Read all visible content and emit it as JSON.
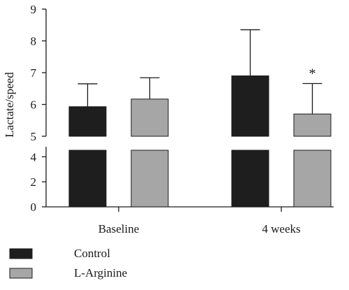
{
  "chart_data": {
    "type": "bar",
    "ylabel": "Lactate/speed",
    "categories": [
      "Baseline",
      "4 weeks"
    ],
    "axis_break": {
      "lower": [
        0,
        4.8
      ],
      "upper": [
        5,
        9
      ]
    },
    "yticks_lower": [
      0,
      2,
      4
    ],
    "yticks_upper": [
      5,
      6,
      7,
      8,
      9
    ],
    "series": [
      {
        "name": "Control",
        "color": "#1e1e1e",
        "values": [
          5.93,
          6.9
        ],
        "errors_upper": [
          0.72,
          1.45
        ]
      },
      {
        "name": "L-Arginine",
        "color": "#a6a6a6",
        "values": [
          6.17,
          5.7
        ],
        "errors_upper": [
          0.67,
          0.96
        ]
      }
    ],
    "annotations": [
      {
        "category": "4 weeks",
        "series": "L-Arginine",
        "text": "*"
      }
    ],
    "legend_position": "bottom-left"
  }
}
